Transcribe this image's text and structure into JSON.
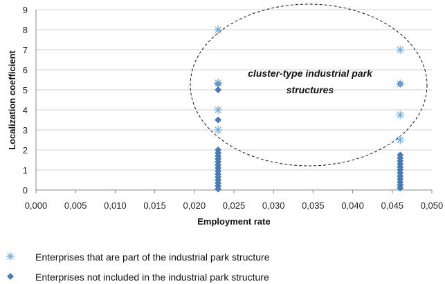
{
  "chart_data": {
    "type": "scatter",
    "xlabel": "Employment rate",
    "ylabel": "Localization coefficient",
    "xlim": [
      0,
      0.05
    ],
    "ylim": [
      0,
      9
    ],
    "x_ticks": [
      "0,000",
      "0,005",
      "0,010",
      "0,015",
      "0,020",
      "0,025",
      "0,030",
      "0,035",
      "0,040",
      "0,045",
      "0,050"
    ],
    "y_ticks": [
      "0",
      "1",
      "2",
      "3",
      "4",
      "5",
      "6",
      "7",
      "8",
      "9"
    ],
    "grid": "horizontal",
    "annotation": {
      "line1": "cluster-type industrial park",
      "line2": "structures"
    },
    "legend_position": "bottom",
    "series": [
      {
        "name": "Enterprises that are part of the industrial park structure",
        "marker": "asterisk",
        "color": "#6fa8dc",
        "points": [
          [
            0.023,
            8.0
          ],
          [
            0.023,
            5.35
          ],
          [
            0.023,
            4.0
          ],
          [
            0.023,
            3.0
          ],
          [
            0.046,
            7.0
          ],
          [
            0.046,
            5.3
          ],
          [
            0.046,
            3.75
          ],
          [
            0.046,
            2.5
          ]
        ]
      },
      {
        "name": "Enterprises not included in the industrial park structure",
        "marker": "diamond",
        "color": "#4a7ebb",
        "points": [
          [
            0.023,
            5.3
          ],
          [
            0.023,
            5.0
          ],
          [
            0.023,
            3.5
          ],
          [
            0.023,
            2.0
          ],
          [
            0.023,
            1.85
          ],
          [
            0.023,
            1.7
          ],
          [
            0.023,
            1.55
          ],
          [
            0.023,
            1.4
          ],
          [
            0.023,
            1.25
          ],
          [
            0.023,
            1.1
          ],
          [
            0.023,
            0.95
          ],
          [
            0.023,
            0.8
          ],
          [
            0.023,
            0.65
          ],
          [
            0.023,
            0.5
          ],
          [
            0.023,
            0.35
          ],
          [
            0.023,
            0.2
          ],
          [
            0.023,
            0.05
          ],
          [
            0.046,
            5.3
          ],
          [
            0.046,
            1.75
          ],
          [
            0.046,
            1.6
          ],
          [
            0.046,
            1.45
          ],
          [
            0.046,
            1.3
          ],
          [
            0.046,
            1.15
          ],
          [
            0.046,
            1.0
          ],
          [
            0.046,
            0.85
          ],
          [
            0.046,
            0.7
          ],
          [
            0.046,
            0.55
          ],
          [
            0.046,
            0.4
          ],
          [
            0.046,
            0.25
          ],
          [
            0.046,
            0.1
          ]
        ]
      }
    ]
  }
}
